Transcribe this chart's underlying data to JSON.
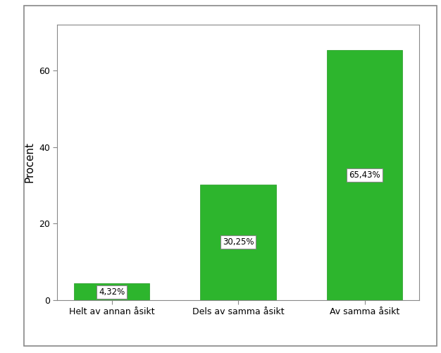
{
  "categories": [
    "Helt av annan åsikt",
    "Dels av samma åsikt",
    "Av samma åsikt"
  ],
  "values": [
    4.32,
    30.25,
    65.43
  ],
  "labels": [
    "4,32%",
    "30,25%",
    "65,43%"
  ],
  "bar_color": "#2db52d",
  "bar_edge_color": "#229922",
  "ylabel": "Procent",
  "ylim": [
    0,
    72
  ],
  "yticks": [
    0,
    20,
    40,
    60
  ],
  "background_color": "#ffffff",
  "plot_bg_color": "#ffffff",
  "label_fontsize": 8.5,
  "tick_fontsize": 9,
  "ylabel_fontsize": 11,
  "label_box_color": "white",
  "label_box_edge": "#888888",
  "spine_color": "#888888",
  "outer_border_color": "#888888"
}
